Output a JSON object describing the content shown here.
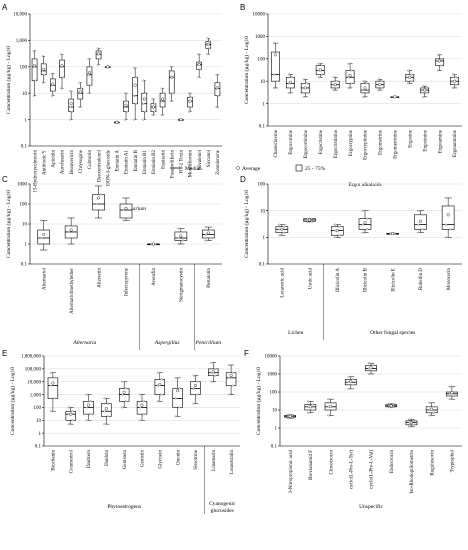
{
  "legend": {
    "median": "Median",
    "average": "Average",
    "iqr": "25 - 75%"
  },
  "chart_data": [
    {
      "id": "A",
      "type": "box",
      "ylabel": "Concentration (µg/kg) - Log10",
      "yscale": "log",
      "ylim": [
        0.1,
        10000
      ],
      "yticks": [
        "0.1",
        "1",
        "10",
        "100",
        "1,000",
        "10,000"
      ],
      "groups": [
        {
          "label": "Fusarium",
          "italic": true,
          "from": 0,
          "to": 22
        }
      ],
      "items": [
        {
          "name": "15-Hydroxyculmorin",
          "q1": 30,
          "median": 100,
          "q3": 200,
          "min": 8,
          "max": 400,
          "mean": 110
        },
        {
          "name": "Antibiotic Y",
          "q1": 50,
          "median": 70,
          "q3": 130,
          "min": 25,
          "max": 250,
          "mean": 80
        },
        {
          "name": "Apicidin",
          "q1": 12,
          "median": 20,
          "q3": 35,
          "min": 8,
          "max": 55,
          "mean": 22
        },
        {
          "name": "Aurofusarin",
          "q1": 40,
          "median": 100,
          "q3": 180,
          "min": 15,
          "max": 300,
          "mean": 110
        },
        {
          "name": "Beauvericin",
          "q1": 2,
          "median": 3,
          "q3": 6,
          "min": 1,
          "max": 12,
          "mean": 4
        },
        {
          "name": "Chrysogine",
          "q1": 6,
          "median": 10,
          "q3": 15,
          "min": 3,
          "max": 25,
          "mean": 11
        },
        {
          "name": "Culmorin",
          "q1": 20,
          "median": 50,
          "q3": 100,
          "min": 10,
          "max": 200,
          "mean": 60
        },
        {
          "name": "Deoxynivalenol",
          "q1": 200,
          "median": 300,
          "q3": 400,
          "min": 120,
          "max": 500,
          "mean": 310
        },
        {
          "name": "DON-3-glucoside",
          "q1": 100,
          "median": 100,
          "q3": 100,
          "min": 100,
          "max": 100,
          "mean": 100
        },
        {
          "name": "Enniatin A",
          "q1": 0.8,
          "median": 0.8,
          "q3": 0.8,
          "min": 0.8,
          "max": 0.8,
          "mean": 0.8
        },
        {
          "name": "Enniatin A1",
          "q1": 2,
          "median": 3,
          "q3": 5,
          "min": 1,
          "max": 10,
          "mean": 3.5
        },
        {
          "name": "Enniatin B",
          "q1": 4,
          "median": 8,
          "q3": 40,
          "min": 1,
          "max": 90,
          "mean": 20
        },
        {
          "name": "Enniatin B1",
          "q1": 2,
          "median": 4,
          "q3": 10,
          "min": 1,
          "max": 30,
          "mean": 6
        },
        {
          "name": "Enniatin B2",
          "q1": 2,
          "median": 3,
          "q3": 4,
          "min": 1.5,
          "max": 6,
          "mean": 3
        },
        {
          "name": "Equisetin",
          "q1": 3,
          "median": 5,
          "q3": 10,
          "min": 1.5,
          "max": 15,
          "mean": 6
        },
        {
          "name": "Fusaproliferin",
          "q1": 10,
          "median": 40,
          "q3": 70,
          "min": 5,
          "max": 100,
          "mean": 40
        },
        {
          "name": "HT-2 Toxin",
          "q1": 1,
          "median": 1,
          "q3": 1,
          "min": 1,
          "max": 1,
          "mean": 1
        },
        {
          "name": "Moniliformin",
          "q1": 3,
          "median": 5,
          "q3": 7,
          "min": 2,
          "max": 10,
          "mean": 5
        },
        {
          "name": "Nivalenol",
          "q1": 80,
          "median": 120,
          "q3": 150,
          "min": 40,
          "max": 300,
          "mean": 120
        },
        {
          "name": "Siccanol",
          "q1": 500,
          "median": 700,
          "q3": 900,
          "min": 300,
          "max": 1200,
          "mean": 700
        },
        {
          "name": "Zearalenone",
          "q1": 8,
          "median": 15,
          "q3": 25,
          "min": 3,
          "max": 50,
          "mean": 16
        }
      ]
    },
    {
      "id": "B",
      "type": "box",
      "ylabel": "Concentration (µg/kg) - Log10",
      "yscale": "log",
      "ylim": [
        0.1,
        10000
      ],
      "yticks": [
        "0.1",
        "1",
        "10",
        "100",
        "1000",
        "10000"
      ],
      "groups": [
        {
          "label": "Ergot alkaloids",
          "italic": false,
          "from": 0,
          "to": 12
        }
      ],
      "items": [
        {
          "name": "Chanoclavine",
          "q1": 10,
          "median": 20,
          "q3": 200,
          "min": 5,
          "max": 500,
          "mean": 150
        },
        {
          "name": "Ergocornine",
          "q1": 5,
          "median": 8,
          "q3": 15,
          "min": 3,
          "max": 20,
          "mean": 9
        },
        {
          "name": "Ergocorninine",
          "q1": 3,
          "median": 5,
          "q3": 8,
          "min": 2,
          "max": 12,
          "mean": 5
        },
        {
          "name": "Ergocristine",
          "q1": 20,
          "median": 30,
          "q3": 50,
          "min": 15,
          "max": 60,
          "mean": 32
        },
        {
          "name": "Ergocristinine",
          "q1": 5,
          "median": 7,
          "q3": 10,
          "min": 4,
          "max": 15,
          "mean": 7
        },
        {
          "name": "Ergocryptine",
          "q1": 8,
          "median": 15,
          "q3": 30,
          "min": 5,
          "max": 60,
          "mean": 18
        },
        {
          "name": "Ergocryptinine",
          "q1": 3,
          "median": 4,
          "q3": 8,
          "min": 2,
          "max": 10,
          "mean": 5
        },
        {
          "name": "Ergometrine",
          "q1": 5,
          "median": 7,
          "q3": 10,
          "min": 4,
          "max": 12,
          "mean": 7
        },
        {
          "name": "Ergometrinine",
          "q1": 2,
          "median": 2,
          "q3": 2,
          "min": 2,
          "max": 2,
          "mean": 2
        },
        {
          "name": "Ergosine",
          "q1": 10,
          "median": 15,
          "q3": 20,
          "min": 8,
          "max": 30,
          "mean": 15
        },
        {
          "name": "Ergosinine",
          "q1": 3,
          "median": 4,
          "q3": 5,
          "min": 2,
          "max": 6,
          "mean": 4
        },
        {
          "name": "Ergotamine",
          "q1": 50,
          "median": 80,
          "q3": 100,
          "min": 30,
          "max": 150,
          "mean": 80
        },
        {
          "name": "Ergotaminine",
          "q1": 7,
          "median": 10,
          "q3": 15,
          "min": 5,
          "max": 20,
          "mean": 10
        }
      ]
    },
    {
      "id": "C",
      "type": "box",
      "ylabel": "Concentration (µg/kg) - Log10",
      "yscale": "log",
      "ylim": [
        0.1,
        1000
      ],
      "yticks": [
        "0.1",
        "1",
        "10",
        "100",
        "1000"
      ],
      "groups": [
        {
          "label": "Alternaria",
          "italic": true,
          "from": 0,
          "to": 3
        },
        {
          "label": "Aspergillus",
          "italic": true,
          "from": 4,
          "to": 5
        },
        {
          "label": "Penicillium",
          "italic": true,
          "from": 6,
          "to": 6
        }
      ],
      "items": [
        {
          "name": "Alternariol",
          "q1": 1,
          "median": 2,
          "q3": 5,
          "min": 0.5,
          "max": 15,
          "mean": 3
        },
        {
          "name": "Alternariolmethylether",
          "q1": 2,
          "median": 4,
          "q3": 8,
          "min": 1,
          "max": 20,
          "mean": 5
        },
        {
          "name": "Altersetin",
          "q1": 50,
          "median": 100,
          "q3": 300,
          "min": 20,
          "max": 800,
          "mean": 200
        },
        {
          "name": "Infectopyrone",
          "q1": 20,
          "median": 50,
          "q3": 100,
          "min": 15,
          "max": 200,
          "mean": 60
        },
        {
          "name": "Averufin",
          "q1": 1,
          "median": 1,
          "q3": 1,
          "min": 1,
          "max": 1,
          "mean": 1
        },
        {
          "name": "Sterigmatocystin",
          "q1": 1.5,
          "median": 2,
          "q3": 4,
          "min": 1,
          "max": 6,
          "mean": 2.5
        },
        {
          "name": "Pestalotin",
          "q1": 2,
          "median": 3,
          "q3": 5,
          "min": 1.5,
          "max": 7,
          "mean": 3.5
        }
      ]
    },
    {
      "id": "D",
      "type": "box",
      "ylabel": "Concentration (µg/kg) - Log10",
      "yscale": "log",
      "ylim": [
        0.1,
        100
      ],
      "yticks": [
        "0.1",
        "1",
        "10",
        "100"
      ],
      "groups": [
        {
          "label": "Lichen",
          "italic": false,
          "from": 0,
          "to": 1
        },
        {
          "label": "Other fungal species",
          "italic": false,
          "from": 2,
          "to": 6
        }
      ],
      "items": [
        {
          "name": "Lecanoric acid",
          "q1": 1.5,
          "median": 2,
          "q3": 2.5,
          "min": 1.2,
          "max": 3,
          "mean": 2
        },
        {
          "name": "Usnic acid",
          "q1": 4,
          "median": 4.5,
          "q3": 5,
          "min": 3.8,
          "max": 5,
          "mean": 4.5
        },
        {
          "name": "Illicicolin A",
          "q1": 1.2,
          "median": 1.8,
          "q3": 2.5,
          "min": 1,
          "max": 3,
          "mean": 1.8
        },
        {
          "name": "Illicicolin B",
          "q1": 2,
          "median": 3,
          "q3": 5,
          "min": 1.5,
          "max": 10,
          "mean": 3.5
        },
        {
          "name": "Illicicolin E",
          "q1": 1.4,
          "median": 1.4,
          "q3": 1.4,
          "min": 1.4,
          "max": 1.4,
          "mean": 1.4
        },
        {
          "name": "Rubellin D",
          "q1": 2,
          "median": 3,
          "q3": 7,
          "min": 1.5,
          "max": 10,
          "mean": 4
        },
        {
          "name": "Monocerin",
          "q1": 2,
          "median": 3,
          "q3": 15,
          "min": 1,
          "max": 30,
          "mean": 7
        }
      ]
    },
    {
      "id": "E",
      "type": "box",
      "ylabel": "Concentration (µg/kg) - Log10",
      "yscale": "log",
      "ylim": [
        0.1,
        1000000
      ],
      "yticks": [
        "0.1",
        "1",
        "10",
        "100",
        "1,000",
        "10,000",
        "100,000",
        "1,000,000"
      ],
      "groups": [
        {
          "label": "Phytoestrogens",
          "italic": false,
          "from": 0,
          "to": 8
        },
        {
          "label": "Cyanogenic glucosides",
          "italic": false,
          "from": 9,
          "to": 10
        }
      ],
      "items": [
        {
          "name": "Biochanin",
          "q1": 500,
          "median": 5000,
          "q3": 20000,
          "min": 50,
          "max": 50000,
          "mean": 8000
        },
        {
          "name": "Coumestrol",
          "q1": 10,
          "median": 30,
          "q3": 50,
          "min": 5,
          "max": 100,
          "mean": 30
        },
        {
          "name": "Daidzein",
          "q1": 30,
          "median": 100,
          "q3": 300,
          "min": 10,
          "max": 1000,
          "mean": 150
        },
        {
          "name": "Daidzin",
          "q1": 20,
          "median": 50,
          "q3": 200,
          "min": 5,
          "max": 500,
          "mean": 80
        },
        {
          "name": "Genistein",
          "q1": 300,
          "median": 1000,
          "q3": 3000,
          "min": 100,
          "max": 10000,
          "mean": 1500
        },
        {
          "name": "Genistin",
          "q1": 30,
          "median": 100,
          "q3": 300,
          "min": 10,
          "max": 1000,
          "mean": 150
        },
        {
          "name": "Glycitein",
          "q1": 1000,
          "median": 5000,
          "q3": 15000,
          "min": 300,
          "max": 50000,
          "mean": 6000
        },
        {
          "name": "Ononin",
          "q1": 100,
          "median": 500,
          "q3": 3000,
          "min": 20,
          "max": 20000,
          "mean": 2000
        },
        {
          "name": "Sissotrine",
          "q1": 1000,
          "median": 3000,
          "q3": 10000,
          "min": 200,
          "max": 30000,
          "mean": 5000
        },
        {
          "name": "Linamarin",
          "q1": 30000,
          "median": 50000,
          "q3": 100000,
          "min": 10000,
          "max": 300000,
          "mean": 60000
        },
        {
          "name": "Lotaustralin",
          "q1": 5000,
          "median": 20000,
          "q3": 50000,
          "min": 1000,
          "max": 200000,
          "mean": 30000
        }
      ]
    },
    {
      "id": "F",
      "type": "box",
      "ylabel": "Concentration (µg/kg) - Log10",
      "yscale": "log",
      "ylim": [
        0.1,
        10000
      ],
      "yticks": [
        "0.1",
        "1",
        "10",
        "100",
        "1000",
        "10000"
      ],
      "groups": [
        {
          "label": "Unspecific",
          "italic": false,
          "from": 0,
          "to": 8
        }
      ],
      "items": [
        {
          "name": "3-Nitropropionic acid",
          "q1": 4,
          "median": 4.5,
          "q3": 5,
          "min": 3.5,
          "max": 5.5,
          "mean": 4.5
        },
        {
          "name": "Brevianamid F",
          "q1": 10,
          "median": 15,
          "q3": 20,
          "min": 7,
          "max": 30,
          "mean": 15
        },
        {
          "name": "Citreoisocin",
          "q1": 10,
          "median": 15,
          "q3": 25,
          "min": 5,
          "max": 40,
          "mean": 16
        },
        {
          "name": "cyclo(L-Pro-L-Tyr)",
          "q1": 250,
          "median": 350,
          "q3": 500,
          "min": 150,
          "max": 700,
          "mean": 380
        },
        {
          "name": "cyclo(L-Pro-L-Val)",
          "q1": 1500,
          "median": 2000,
          "q3": 3000,
          "min": 1000,
          "max": 4000,
          "mean": 2200
        },
        {
          "name": "Endocrocin",
          "q1": 15,
          "median": 17,
          "q3": 20,
          "min": 14,
          "max": 22,
          "mean": 17
        },
        {
          "name": "Iso-Rhodoptilometrin",
          "q1": 1.5,
          "median": 2,
          "q3": 2.5,
          "min": 1.2,
          "max": 3,
          "mean": 2
        },
        {
          "name": "Rugulusovin",
          "q1": 7,
          "median": 10,
          "q3": 15,
          "min": 5,
          "max": 25,
          "mean": 11
        },
        {
          "name": "Tryptophol",
          "q1": 60,
          "median": 80,
          "q3": 100,
          "min": 40,
          "max": 200,
          "mean": 90
        }
      ]
    }
  ]
}
